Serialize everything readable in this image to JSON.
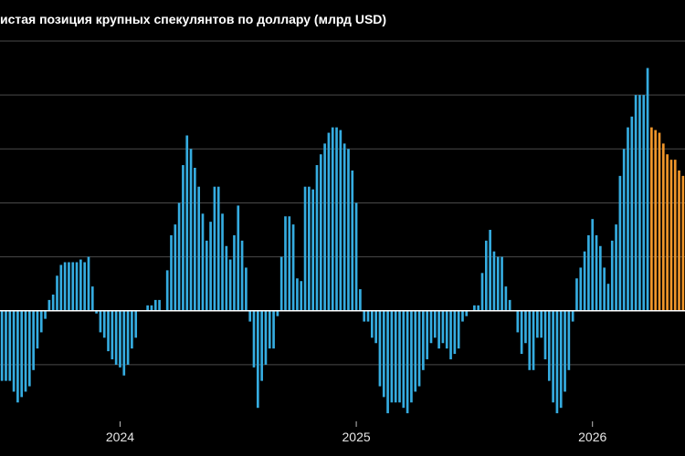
{
  "chart_data": {
    "type": "bar",
    "title": "истая позиция крупных спекулянтов по доллару (млрд USD)",
    "xlabel": "",
    "ylabel": "",
    "ylim": [
      -4.1,
      10
    ],
    "y_gridlines": [
      -2,
      0,
      2,
      4,
      6,
      8,
      10
    ],
    "x_ticks": [
      {
        "label": "2024",
        "index": 30
      },
      {
        "label": "2025",
        "index": 90
      },
      {
        "label": "2026",
        "index": 150
      }
    ],
    "colors": {
      "historical": "#35ace0",
      "latest": "#f0962a",
      "grid": "#4a4a4a",
      "zero_line": "#ffffff",
      "background": "#000000"
    },
    "series": [
      {
        "values": [
          -2.6,
          -2.6,
          -2.6,
          -3.0,
          -3.4,
          -3.2,
          -3.0,
          -2.8,
          -2.2,
          -1.4,
          -0.8,
          -0.3,
          0.4,
          0.6,
          1.3,
          1.7,
          1.8,
          1.8,
          1.8,
          1.8,
          1.9,
          1.8,
          2.0,
          0.9,
          -0.1,
          -0.8,
          -1.0,
          -1.5,
          -1.8,
          -2.0,
          -2.1,
          -2.4,
          -2.0,
          -1.4,
          -1.0,
          0.0,
          0.0,
          0.2,
          0.2,
          0.4,
          0.4,
          0.0,
          1.5,
          2.8,
          3.2,
          4.0,
          5.4,
          6.5,
          6.0,
          5.3,
          4.6,
          3.6,
          2.6,
          3.3,
          4.6,
          4.6,
          3.6,
          2.4,
          1.9,
          2.8,
          3.9,
          2.6,
          1.6,
          -0.4,
          -2.1,
          -3.6,
          -2.6,
          -2.0,
          -1.4,
          -1.4,
          -0.2,
          2.0,
          3.5,
          3.5,
          3.2,
          1.2,
          1.1,
          4.6,
          4.6,
          4.5,
          5.4,
          5.8,
          6.2,
          6.6,
          6.8,
          6.8,
          6.7,
          6.2,
          6.0,
          5.2,
          4.0,
          0.8,
          -0.4,
          -0.4,
          -1.0,
          -1.2,
          -2.8,
          -3.2,
          -3.8,
          -3.4,
          -3.4,
          -3.4,
          -3.6,
          -3.8,
          -3.4,
          -3.0,
          -2.8,
          -2.2,
          -1.8,
          -1.2,
          -1.0,
          -1.4,
          -1.2,
          -1.4,
          -1.8,
          -1.6,
          -1.4,
          -0.4,
          -0.2,
          0.0,
          0.2,
          0.2,
          1.4,
          2.6,
          3.0,
          2.2,
          2.0,
          2.0,
          0.9,
          0.4,
          0.0,
          -0.8,
          -1.6,
          -1.2,
          -2.2,
          -2.2,
          -1.0,
          -1.0,
          -1.8,
          -2.6,
          -3.4,
          -3.8,
          -3.6,
          -3.0,
          -2.2,
          -0.4,
          1.2,
          1.6,
          2.2,
          2.8,
          3.4,
          2.8,
          2.4,
          1.6,
          1.0,
          2.6,
          3.2,
          5.0,
          6.0,
          6.8,
          7.2,
          8.0,
          8.0,
          8.0,
          9.0
        ],
        "color": "#35ace0"
      },
      {
        "values": [
          6.8,
          6.7,
          6.6,
          6.2,
          5.8,
          5.6,
          5.6,
          5.2,
          5.0
        ],
        "color": "#f0962a"
      }
    ]
  }
}
